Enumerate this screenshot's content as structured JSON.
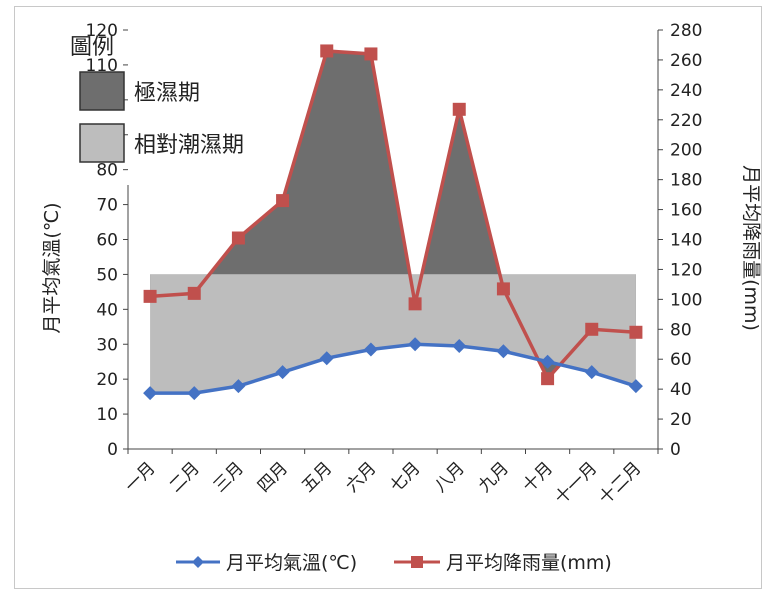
{
  "chart_data": {
    "type": "line",
    "categories": [
      "一月",
      "二月",
      "三月",
      "四月",
      "五月",
      "六月",
      "七月",
      "八月",
      "九月",
      "十月",
      "十一月",
      "十二月"
    ],
    "series": [
      {
        "name": "月平均氣溫(℃)",
        "axis": "left",
        "color": "#4472c4",
        "values": [
          16,
          16,
          18,
          22,
          26,
          28.5,
          30,
          29.5,
          28,
          25,
          22,
          18
        ]
      },
      {
        "name": "月平均降雨量(mm)",
        "axis": "right",
        "color": "#c0504d",
        "values": [
          102,
          104,
          141,
          166,
          266,
          264,
          97,
          227,
          107,
          47,
          80,
          78
        ]
      }
    ],
    "left_axis": {
      "label": "月平均氣溫(℃)",
      "min": 0,
      "max": 120,
      "step": 10
    },
    "right_axis": {
      "label": "月平均降雨量(mm)",
      "min": 0,
      "max": 280,
      "step": 20
    },
    "bands": {
      "threshold_left_value": 50,
      "very_wet": {
        "label": "極濕期",
        "color": "#6e6e6e"
      },
      "relatively_wet": {
        "label": "相對潮濕期",
        "color": "#bdbdbd"
      }
    },
    "legend_title": "圖例",
    "grid": false,
    "legend_position": "bottom"
  }
}
